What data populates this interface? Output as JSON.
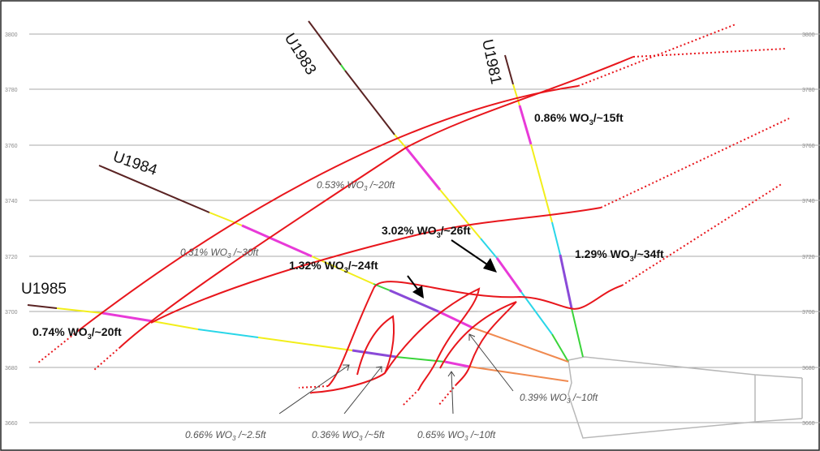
{
  "elevation_ticks": [
    "3800",
    "3780",
    "3760",
    "3740",
    "3720",
    "3700",
    "3680",
    "3660"
  ],
  "drill_holes": [
    "U1983",
    "U1981",
    "U1984",
    "U1985"
  ],
  "annotations_bold": {
    "u1981": {
      "value": "0.86% WO",
      "sub": "3",
      "rest": "/~15ft"
    },
    "center": {
      "value": "3.02% WO",
      "sub": "3",
      "rest": "/~26ft"
    },
    "right": {
      "value": "1.29% WO",
      "sub": "3",
      "rest": "/~34ft"
    },
    "u1984": {
      "value": "1.32% WO",
      "sub": "3",
      "rest": "/~24ft"
    },
    "u1985": {
      "value": "0.74% WO",
      "sub": "3",
      "rest": "/~20ft"
    }
  },
  "annotations_italic": {
    "u1983": {
      "value": "0.53% WO",
      "sub": "3",
      "rest": " /~20ft"
    },
    "u1984": {
      "value": "0.31% WO",
      "sub": "3",
      "rest": " /~30ft"
    },
    "bottom_mid": {
      "value": "0.39% WO",
      "sub": "3",
      "rest": " /~10ft"
    },
    "bottom_1": {
      "value": "0.66% WO",
      "sub": "3",
      "rest": " /~2.5ft"
    },
    "bottom_2": {
      "value": "0.36% WO",
      "sub": "3",
      "rest": " /~5ft"
    },
    "bottom_3": {
      "value": "0.65% WO",
      "sub": "3",
      "rest": " /~10ft"
    }
  },
  "colors": {
    "vein": "#e8161c",
    "intercept_magenta": "#e83ad8",
    "intercept_purple": "#8a4ad8",
    "trace_yellow": "#f2ee1a",
    "trace_cyan": "#29d6e8",
    "trace_green": "#3ad43a",
    "trace_orange": "#f08a50",
    "collar_brown": "#5a2323",
    "grid": "#a8a8a8",
    "drill_station": "#b8b8b8"
  }
}
